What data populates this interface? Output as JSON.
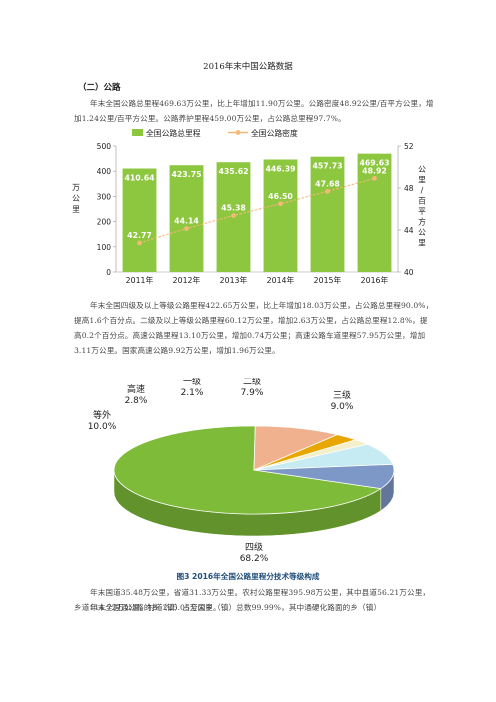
{
  "document": {
    "title": "2016年末中国公路数据",
    "section_heading": "（二）公路",
    "paragraph_1": "年末全国公路总里程469.63万公里，比上年增加11.90万公里。公路密度48.92公里/百平方公里，增加1.24公里/百平方公里。公路养护里程459.00万公里，占公路总里程97.7%。",
    "paragraph_2": "年末全国四级及以上等级公路里程422.65万公里，比上年增加18.03万公里，占公路总里程90.0%，提高1.6个百分点。二级及以上等级公路里程60.12万公里，增加2.63万公里，占公路总里程12.8%，提高0.2个百分点。高速公路里程13.10万公里，增加0.74万公里；高速公路车道里程57.95万公里，增加3.11万公里。国家高速公路9.92万公里，增加1.96万公里。",
    "figure_caption": "图3 2016年全国公路里程分技术等级构成",
    "paragraph_3": "年末国道35.48万公里，省道31.33万公里。农村公路里程395.98万公里，其中县道56.21万公里，乡道114.72万公里、村道225.05万公里。",
    "paragraph_4": "年末全国通公路的乡（镇）占全国乡（镇）总数99.99%，其中通硬化路面的乡（镇）"
  },
  "chart_data": [
    {
      "type": "bar",
      "categories": [
        "2011年",
        "2012年",
        "2013年",
        "2014年",
        "2015年",
        "2016年"
      ],
      "series": [
        {
          "name": "全国公路总里程",
          "type": "bar",
          "axis": "left",
          "values": [
            410.64,
            423.75,
            435.62,
            446.39,
            457.73,
            469.63
          ],
          "color": "#8dc63f"
        },
        {
          "name": "全国公路密度",
          "type": "line",
          "axis": "right",
          "values": [
            42.77,
            44.14,
            45.38,
            46.5,
            47.68,
            48.92
          ],
          "color": "#f5b877"
        }
      ],
      "left_axis": {
        "label": "万公里",
        "ylim": [
          0,
          500
        ],
        "ticks": [
          "0",
          "100",
          "200",
          "300",
          "400",
          "500"
        ]
      },
      "right_axis": {
        "label": "公里/百平方公里",
        "ylim": [
          40,
          52
        ],
        "ticks": [
          "40",
          "44",
          "48",
          "52"
        ]
      },
      "bar_labels": [
        "410.64",
        "423.75",
        "435.62",
        "446.39",
        "457.73",
        "469.63"
      ],
      "line_labels": [
        "42.77",
        "44.14",
        "45.38",
        "46.50",
        "47.68",
        "48.92"
      ],
      "legend_position": "top"
    },
    {
      "type": "pie",
      "style": "3d",
      "slices": [
        {
          "label": "四级",
          "value": 68.2,
          "pct_label": "68.2%",
          "color": "#7dbb38"
        },
        {
          "label": "等外",
          "value": 10.0,
          "pct_label": "10.0%",
          "color": "#f0b28e"
        },
        {
          "label": "高速",
          "value": 2.8,
          "pct_label": "2.8%",
          "color": "#e8a600"
        },
        {
          "label": "一级",
          "value": 2.1,
          "pct_label": "2.1%",
          "color": "#f5efc9"
        },
        {
          "label": "二级",
          "value": 7.9,
          "pct_label": "7.9%",
          "color": "#c7ebf2"
        },
        {
          "label": "三级",
          "value": 9.0,
          "pct_label": "9.0%",
          "color": "#7d97c6"
        }
      ]
    }
  ]
}
